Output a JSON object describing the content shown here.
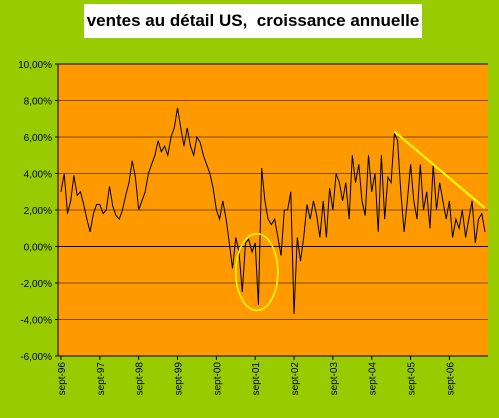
{
  "colors": {
    "background": "#99CC00",
    "plot_area": "#FF9900",
    "line": "#000000",
    "gridline": "#000000",
    "highlight_circle": "#FFFF00",
    "trend_line": "#FFFF00",
    "title_box": "#FFFFFF"
  },
  "chart_data": {
    "type": "line",
    "title": "ventes au détail US,  croissance annuelle",
    "xlabel": "",
    "ylabel": "",
    "ylim": [
      -6,
      10
    ],
    "grid": true,
    "y_ticks": [
      10,
      8,
      6,
      4,
      2,
      0,
      -2,
      -4,
      -6
    ],
    "y_tick_labels": [
      "10,00%",
      "8,00%",
      "6,00%",
      "4,00%",
      "2,00%",
      "0,00%",
      "-2,00%",
      "-4,00%",
      "-6,00%"
    ],
    "x_tick_labels": [
      "sept-96",
      "sept-97",
      "sept-98",
      "sept-99",
      "sept-00",
      "sept-01",
      "sept-02",
      "sept-03",
      "sept-04",
      "sept-05",
      "sept-06"
    ],
    "x_tick_index": [
      0,
      12,
      24,
      36,
      48,
      60,
      72,
      84,
      96,
      108,
      120
    ],
    "series": [
      {
        "values": [
          3.0,
          4.0,
          1.8,
          2.5,
          3.9,
          2.8,
          3.0,
          2.3,
          1.5,
          0.8,
          1.8,
          2.3,
          2.3,
          1.8,
          2.0,
          3.3,
          2.2,
          1.7,
          1.5,
          2.0,
          2.8,
          3.5,
          4.7,
          3.8,
          2.0,
          2.5,
          3.0,
          4.0,
          4.5,
          5.0,
          5.8,
          5.2,
          5.5,
          5.0,
          6.0,
          6.5,
          7.6,
          6.5,
          5.5,
          6.5,
          5.5,
          5.0,
          6.0,
          5.7,
          5.0,
          4.5,
          4.0,
          3.2,
          2.0,
          1.5,
          2.5,
          1.5,
          0.2,
          -1.2,
          0.5,
          -0.3,
          -2.5,
          0.2,
          0.4,
          -0.3,
          0.2,
          -3.2,
          4.3,
          2.5,
          1.5,
          1.2,
          1.5,
          0.5,
          -0.5,
          2.0,
          2.0,
          3.0,
          -3.7,
          0.5,
          -0.8,
          0.5,
          2.3,
          1.5,
          2.5,
          1.7,
          0.5,
          2.5,
          0.5,
          3.2,
          2.0,
          4.0,
          3.5,
          2.5,
          3.5,
          1.5,
          5.0,
          3.5,
          4.5,
          2.5,
          1.7,
          5.0,
          3.0,
          4.0,
          0.8,
          5.0,
          1.5,
          3.8,
          3.5,
          6.2,
          5.8,
          3.0,
          0.8,
          2.5,
          4.5,
          2.5,
          1.5,
          4.5,
          2.0,
          3.0,
          1.0,
          4.5,
          2.0,
          3.5,
          2.5,
          1.5,
          2.5,
          0.5,
          1.5,
          1.0,
          2.0,
          0.5,
          1.5,
          2.5,
          0.2,
          1.5,
          1.8,
          0.8
        ]
      }
    ],
    "annotations": {
      "circle": {
        "x_center": 60.5,
        "y_center": -1.4,
        "x_radius": 6.5,
        "y_radius": 2.1
      },
      "trend_line": {
        "x": [
          103,
          131
        ],
        "y": [
          6.3,
          2.1
        ]
      }
    }
  }
}
